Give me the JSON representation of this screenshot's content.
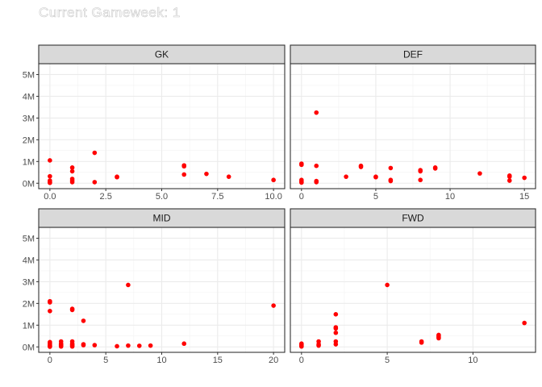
{
  "title": "Current Gameweek: 1",
  "chart_data": {
    "type": "scatter",
    "point_color": "#ff0000",
    "y_ticks": [
      "0M",
      "1M",
      "2M",
      "3M",
      "4M",
      "5M"
    ],
    "y_tick_values": [
      0,
      1,
      2,
      3,
      4,
      5
    ],
    "ylim": [
      -0.25,
      5.5
    ],
    "grid": true,
    "panels": [
      {
        "name": "GK",
        "xlim": [
          -0.5,
          10.5
        ],
        "x_ticks": [
          0,
          2.5,
          5,
          7.5,
          10
        ],
        "x_tick_labels": [
          "0.0",
          "2.5",
          "5.0",
          "7.5",
          "10.0"
        ],
        "points": [
          [
            0,
            1.05
          ],
          [
            0,
            0.32
          ],
          [
            0,
            0.12
          ],
          [
            0,
            0.05
          ],
          [
            0,
            0.02
          ],
          [
            1,
            0.72
          ],
          [
            1,
            0.55
          ],
          [
            1,
            0.2
          ],
          [
            1,
            0.12
          ],
          [
            1,
            0.05
          ],
          [
            2,
            1.4
          ],
          [
            2,
            0.05
          ],
          [
            3,
            0.3
          ],
          [
            3,
            0.28
          ],
          [
            6,
            0.82
          ],
          [
            6,
            0.78
          ],
          [
            6,
            0.4
          ],
          [
            7,
            0.43
          ],
          [
            8,
            0.3
          ],
          [
            10,
            0.15
          ]
        ]
      },
      {
        "name": "DEF",
        "xlim": [
          -0.75,
          15.75
        ],
        "x_ticks": [
          0,
          5,
          10,
          15
        ],
        "x_tick_labels": [
          "0",
          "5",
          "10",
          "15"
        ],
        "points": [
          [
            0,
            0.9
          ],
          [
            0,
            0.85
          ],
          [
            0,
            0.15
          ],
          [
            0,
            0.08
          ],
          [
            0,
            0.03
          ],
          [
            1,
            3.25
          ],
          [
            1,
            0.8
          ],
          [
            1,
            0.1
          ],
          [
            1,
            0.05
          ],
          [
            3,
            0.3
          ],
          [
            4,
            0.8
          ],
          [
            4,
            0.75
          ],
          [
            5,
            0.3
          ],
          [
            5,
            0.28
          ],
          [
            6,
            0.7
          ],
          [
            6,
            0.15
          ],
          [
            6,
            0.1
          ],
          [
            8,
            0.6
          ],
          [
            8,
            0.55
          ],
          [
            8,
            0.15
          ],
          [
            9,
            0.72
          ],
          [
            9,
            0.68
          ],
          [
            12,
            0.45
          ],
          [
            14,
            0.35
          ],
          [
            14,
            0.3
          ],
          [
            14,
            0.12
          ],
          [
            15,
            0.25
          ]
        ]
      },
      {
        "name": "MID",
        "xlim": [
          -1,
          21
        ],
        "x_ticks": [
          0,
          5,
          10,
          15,
          20
        ],
        "x_tick_labels": [
          "0",
          "5",
          "10",
          "15",
          "20"
        ],
        "points": [
          [
            0,
            2.1
          ],
          [
            0,
            2.05
          ],
          [
            0,
            1.65
          ],
          [
            0,
            0.22
          ],
          [
            0,
            0.15
          ],
          [
            0,
            0.08
          ],
          [
            0,
            0.04
          ],
          [
            0,
            0.01
          ],
          [
            1,
            0.25
          ],
          [
            1,
            0.15
          ],
          [
            1,
            0.1
          ],
          [
            1,
            0.06
          ],
          [
            1,
            0.02
          ],
          [
            2,
            1.75
          ],
          [
            2,
            1.7
          ],
          [
            2,
            0.25
          ],
          [
            2,
            0.15
          ],
          [
            2,
            0.1
          ],
          [
            2,
            0.05
          ],
          [
            2,
            0.02
          ],
          [
            3,
            1.2
          ],
          [
            3,
            0.12
          ],
          [
            3,
            0.08
          ],
          [
            4,
            0.08
          ],
          [
            6,
            0.03
          ],
          [
            7,
            2.85
          ],
          [
            7,
            0.06
          ],
          [
            8,
            0.05
          ],
          [
            9,
            0.06
          ],
          [
            12,
            0.15
          ],
          [
            20,
            1.9
          ]
        ]
      },
      {
        "name": "FWD",
        "xlim": [
          -0.65,
          13.65
        ],
        "x_ticks": [
          0,
          5,
          10
        ],
        "x_tick_labels": [
          "0",
          "5",
          "10"
        ],
        "points": [
          [
            0,
            0.15
          ],
          [
            0,
            0.1
          ],
          [
            0,
            0.05
          ],
          [
            0,
            0.02
          ],
          [
            1,
            0.25
          ],
          [
            1,
            0.12
          ],
          [
            1,
            0.06
          ],
          [
            2,
            1.5
          ],
          [
            2,
            0.9
          ],
          [
            2,
            0.85
          ],
          [
            2,
            0.65
          ],
          [
            2,
            0.25
          ],
          [
            2,
            0.12
          ],
          [
            5,
            2.85
          ],
          [
            7,
            0.25
          ],
          [
            7,
            0.2
          ],
          [
            8,
            0.55
          ],
          [
            8,
            0.5
          ],
          [
            8,
            0.45
          ],
          [
            8,
            0.4
          ],
          [
            13,
            1.1
          ]
        ]
      }
    ]
  }
}
